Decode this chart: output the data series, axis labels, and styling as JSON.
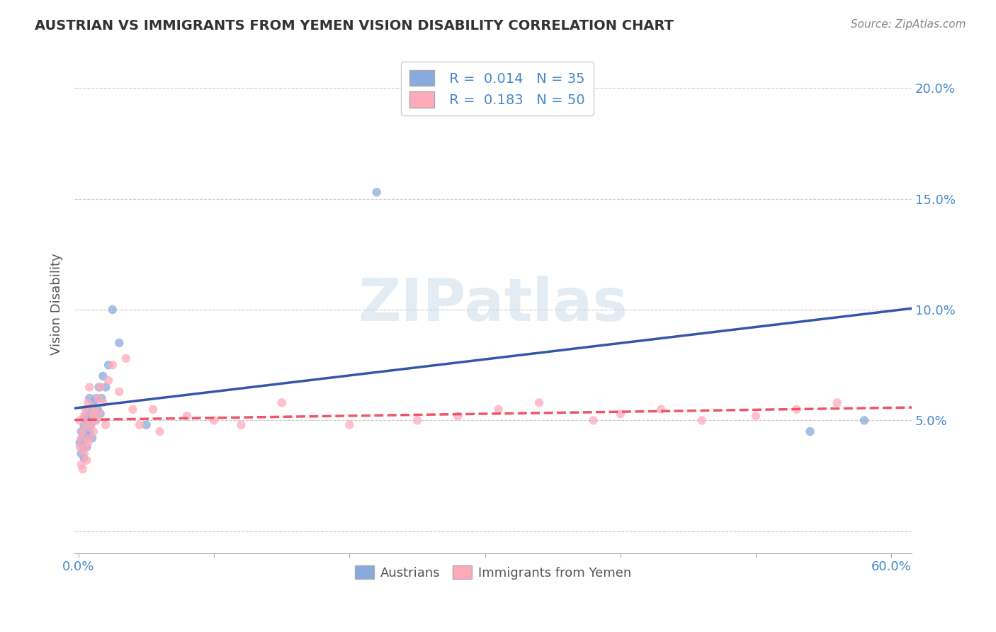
{
  "title": "AUSTRIAN VS IMMIGRANTS FROM YEMEN VISION DISABILITY CORRELATION CHART",
  "source": "Source: ZipAtlas.com",
  "ylabel": "Vision Disability",
  "xlim": [
    -0.003,
    0.615
  ],
  "ylim": [
    -0.01,
    0.215
  ],
  "xtick_vals": [
    0.0,
    0.1,
    0.2,
    0.3,
    0.4,
    0.5,
    0.6
  ],
  "xtick_labels_ends": [
    "0.0%",
    "60.0%"
  ],
  "xtick_ends_pos": [
    0.0,
    0.6
  ],
  "ytick_vals": [
    0.0,
    0.05,
    0.1,
    0.15,
    0.2
  ],
  "ytick_right_labels": [
    "",
    "5.0%",
    "10.0%",
    "15.0%",
    "20.0%"
  ],
  "grid_color": "#cccccc",
  "background_color": "#ffffff",
  "color_austrians": "#88aadd",
  "color_yemen": "#ffaabb",
  "legend_austrians": "Austrians",
  "legend_yemen": "Immigrants from Yemen",
  "title_color": "#333333",
  "source_color": "#888888",
  "axis_color": "#555555",
  "right_axis_color": "#4488cc",
  "trend_color_austrians": "#3355aa",
  "trend_color_yemen": "#ee5566",
  "watermark_color": "#c8d8e8",
  "watermark_alpha": 0.5,
  "austrians_x": [
    0.001,
    0.002,
    0.002,
    0.003,
    0.003,
    0.004,
    0.004,
    0.005,
    0.005,
    0.006,
    0.006,
    0.007,
    0.007,
    0.008,
    0.008,
    0.009,
    0.009,
    0.01,
    0.011,
    0.012,
    0.013,
    0.014,
    0.015,
    0.016,
    0.017,
    0.018,
    0.02,
    0.022,
    0.025,
    0.03,
    0.05,
    0.22,
    0.3,
    0.54,
    0.58
  ],
  "austrians_y": [
    0.04,
    0.035,
    0.045,
    0.038,
    0.042,
    0.033,
    0.048,
    0.04,
    0.052,
    0.038,
    0.05,
    0.043,
    0.055,
    0.045,
    0.06,
    0.048,
    0.053,
    0.042,
    0.058,
    0.05,
    0.06,
    0.055,
    0.065,
    0.053,
    0.06,
    0.07,
    0.065,
    0.075,
    0.1,
    0.085,
    0.048,
    0.153,
    0.197,
    0.045,
    0.05
  ],
  "yemen_x": [
    0.001,
    0.001,
    0.002,
    0.002,
    0.003,
    0.003,
    0.004,
    0.004,
    0.005,
    0.005,
    0.006,
    0.006,
    0.007,
    0.007,
    0.008,
    0.008,
    0.009,
    0.01,
    0.011,
    0.012,
    0.013,
    0.014,
    0.015,
    0.016,
    0.018,
    0.02,
    0.022,
    0.025,
    0.03,
    0.035,
    0.04,
    0.045,
    0.055,
    0.06,
    0.08,
    0.1,
    0.12,
    0.15,
    0.2,
    0.25,
    0.28,
    0.31,
    0.34,
    0.38,
    0.4,
    0.43,
    0.46,
    0.5,
    0.53,
    0.56
  ],
  "yemen_y": [
    0.038,
    0.05,
    0.03,
    0.042,
    0.028,
    0.045,
    0.035,
    0.052,
    0.038,
    0.055,
    0.032,
    0.048,
    0.04,
    0.058,
    0.042,
    0.065,
    0.048,
    0.053,
    0.045,
    0.055,
    0.05,
    0.06,
    0.053,
    0.065,
    0.058,
    0.048,
    0.068,
    0.075,
    0.063,
    0.078,
    0.055,
    0.048,
    0.055,
    0.045,
    0.052,
    0.05,
    0.048,
    0.058,
    0.048,
    0.05,
    0.052,
    0.055,
    0.058,
    0.05,
    0.053,
    0.055,
    0.05,
    0.052,
    0.055,
    0.058
  ]
}
